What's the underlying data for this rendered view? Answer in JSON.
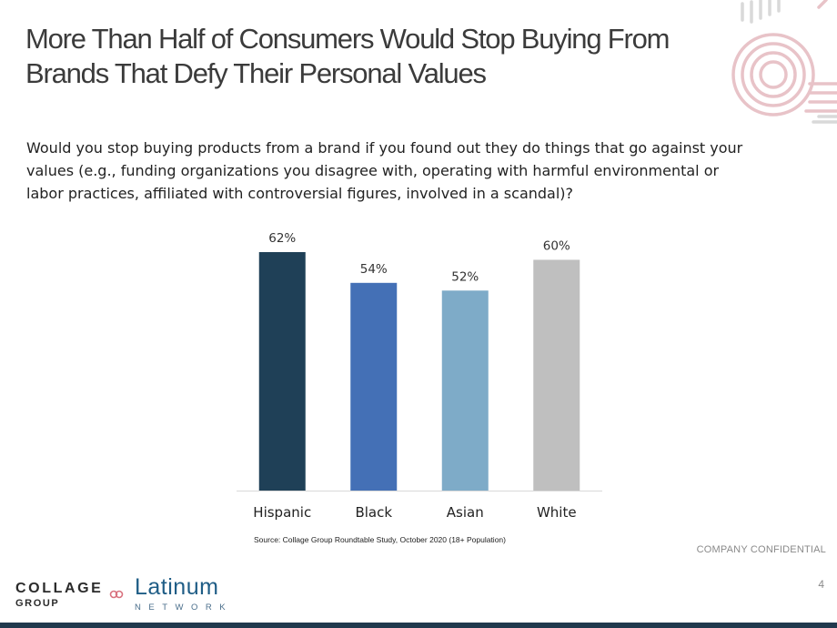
{
  "title": {
    "line1": "More Than Half of Consumers Would Stop Buying From",
    "line2": "Brands That Defy Their Personal Values"
  },
  "question": {
    "line1": "Would you stop buying products from a brand if you found out they do things that go against your",
    "line2": "values (e.g., funding organizations you disagree with, operating with harmful environmental or",
    "line3": "labor practices, affiliated with controversial figures, involved in a scandal)?"
  },
  "chart_data": {
    "type": "bar",
    "categories": [
      "Hispanic",
      "Black",
      "Asian",
      "White"
    ],
    "values": [
      62,
      54,
      52,
      60
    ],
    "value_labels": [
      "62%",
      "54%",
      "52%",
      "60%"
    ],
    "colors": [
      "#1f4057",
      "#4470b6",
      "#7eabc8",
      "#bfbfbf"
    ],
    "ylim": [
      0,
      62
    ],
    "grid": false,
    "legend": "none"
  },
  "source": "Source: Collage Group Roundtable Study, October 2020 (18+ Population)",
  "confidential": "COMPANY CONFIDENTIAL",
  "page_number": "4",
  "footer_logos": {
    "collage_line1": "COLLAGE",
    "collage_line2": "GROUP",
    "latinum_line1": "Latinum",
    "latinum_line2": "NETWORK"
  },
  "colors": {
    "title": "#3b3b3b",
    "footer_bar": "#20394d",
    "decor": "#e8c3c8"
  }
}
